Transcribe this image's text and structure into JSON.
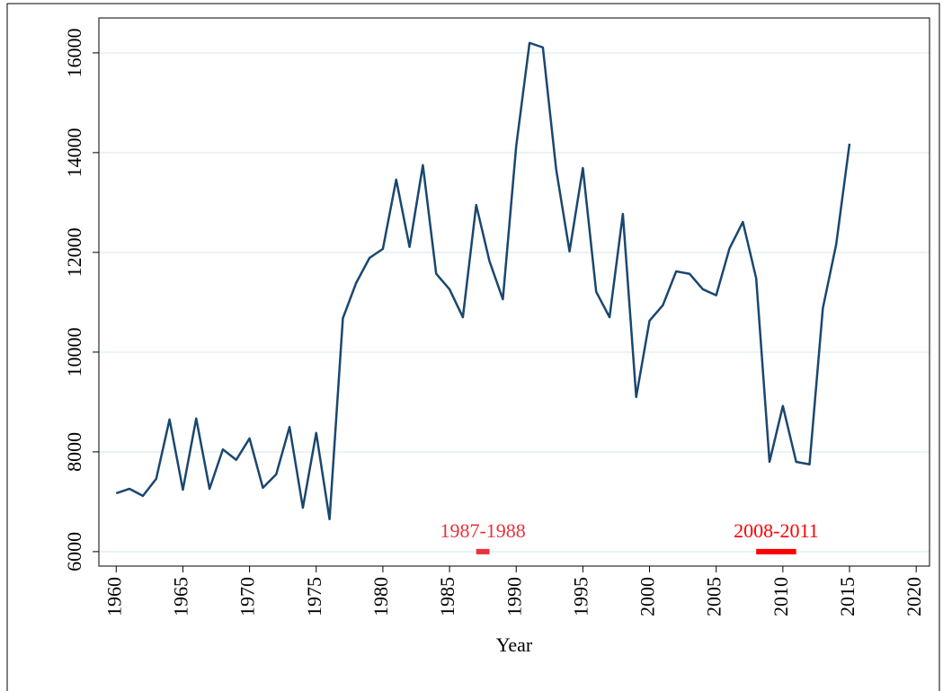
{
  "chart_data": {
    "type": "line",
    "x_label": "Year",
    "x": [
      1960,
      1961,
      1962,
      1963,
      1964,
      1965,
      1966,
      1967,
      1968,
      1969,
      1970,
      1971,
      1972,
      1973,
      1974,
      1975,
      1976,
      1977,
      1978,
      1979,
      1980,
      1981,
      1982,
      1983,
      1984,
      1985,
      1986,
      1987,
      1988,
      1989,
      1990,
      1991,
      1992,
      1993,
      1994,
      1995,
      1996,
      1997,
      1998,
      1999,
      2000,
      2001,
      2002,
      2003,
      2004,
      2005,
      2006,
      2007,
      2008,
      2009,
      2010,
      2011,
      2012,
      2013,
      2014,
      2015
    ],
    "series": [
      {
        "color": "#1a476f",
        "values": [
          7171,
          7260,
          7117,
          7460,
          8650,
          7240,
          8670,
          7260,
          8050,
          7840,
          8270,
          7280,
          7550,
          8500,
          6880,
          8380,
          6650,
          10680,
          11390,
          11890,
          12070,
          13460,
          12110,
          13750,
          11570,
          11260,
          10700,
          12950,
          11820,
          11060,
          14130,
          16200,
          16110,
          13660,
          12020,
          13690,
          11210,
          10700,
          12770,
          9100,
          10630,
          10940,
          11620,
          11570,
          11260,
          11140,
          12080,
          12610,
          11480,
          7800,
          8920,
          7800,
          7750,
          10880,
          12160,
          14180
        ]
      }
    ],
    "xlim": [
      1958.7,
      2021
    ],
    "xticks": [
      1960,
      1965,
      1970,
      1975,
      1980,
      1985,
      1990,
      1995,
      2000,
      2005,
      2010,
      2015,
      2020
    ],
    "ylim": [
      5710,
      16700
    ],
    "yticks": [
      6000,
      8000,
      10000,
      12000,
      14000,
      16000
    ],
    "grid": true,
    "annotations": [
      {
        "text": "1987-1988",
        "x": [
          1987,
          1988
        ],
        "y": 6000,
        "color": "#e8323c"
      },
      {
        "text": "2008-2011",
        "x": [
          2008,
          2011
        ],
        "y": 6000,
        "color": "#ff0000"
      }
    ]
  }
}
